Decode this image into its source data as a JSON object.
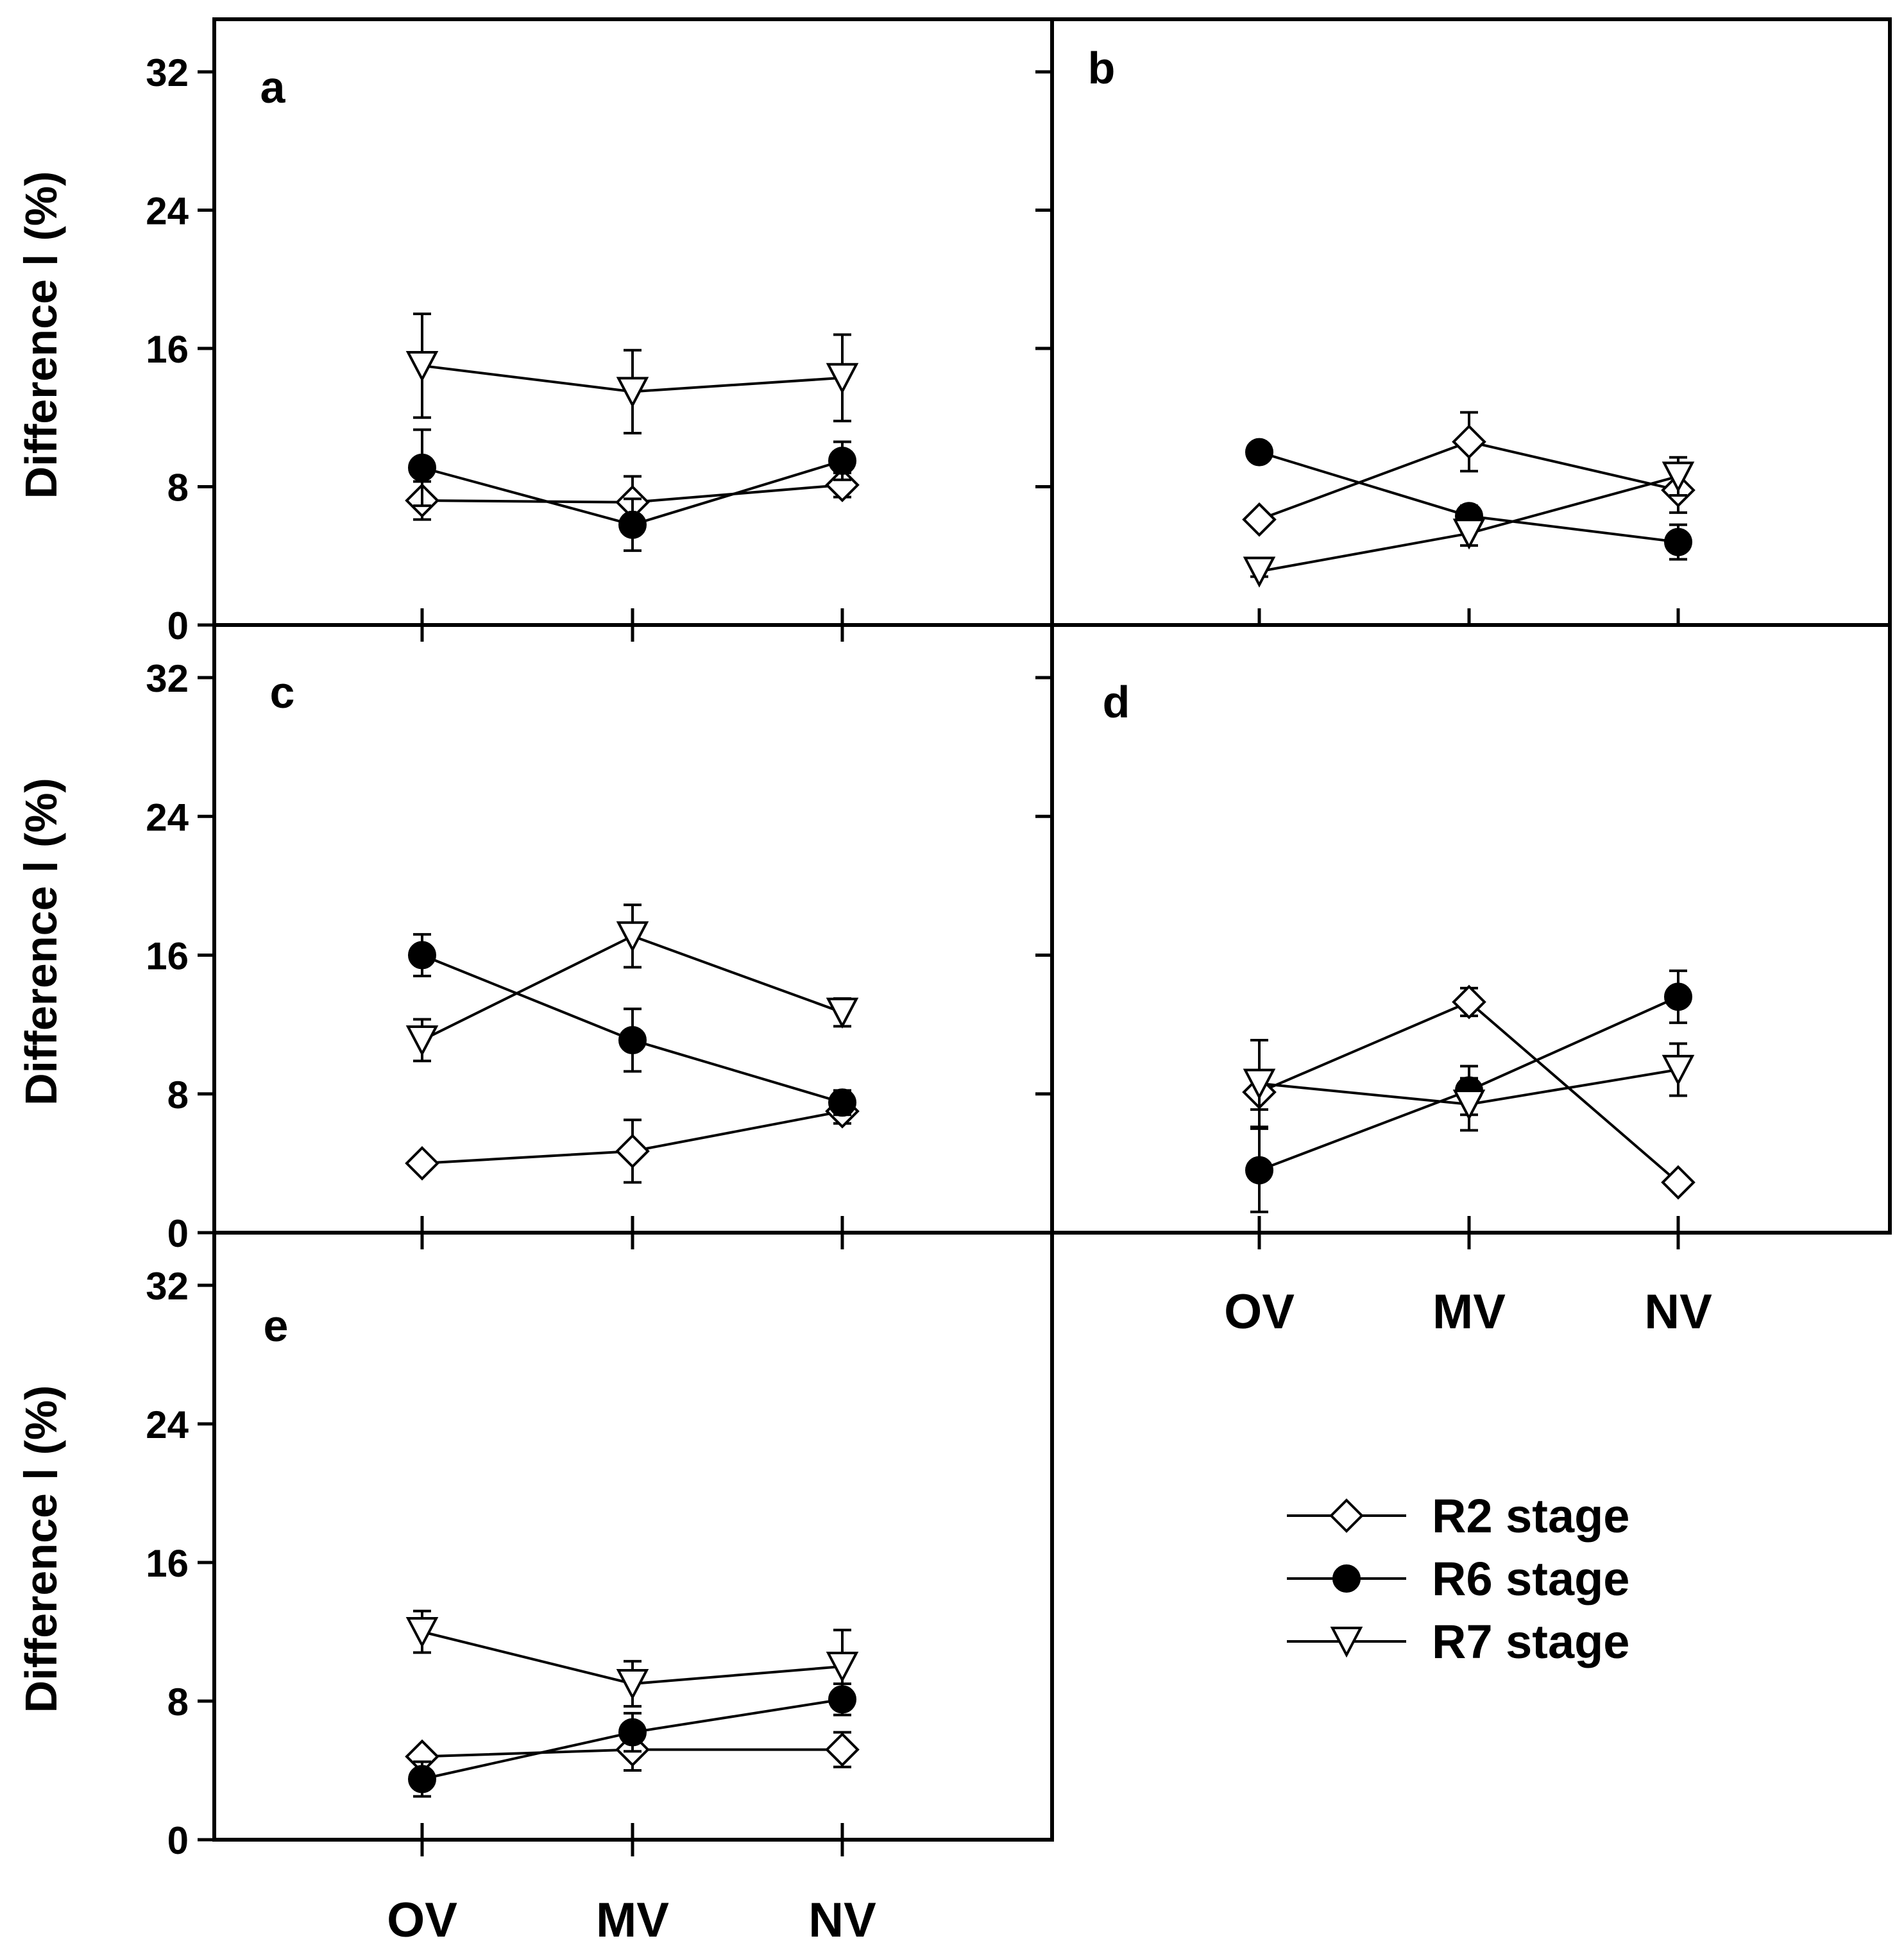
{
  "figure": {
    "categories": [
      "OV",
      "MV",
      "NV"
    ],
    "y_tick_labels": [
      "0",
      "8",
      "16",
      "24",
      "32"
    ],
    "ylabel": "Difference Ⅰ (%)",
    "legend": [
      {
        "name": "R2 stage",
        "marker": "open-diamond"
      },
      {
        "name": "R6 stage",
        "marker": "filled-circle"
      },
      {
        "name": "R7 stage",
        "marker": "open-triangle-down"
      }
    ]
  },
  "chart_data": [
    {
      "type": "line",
      "panel_label": "a",
      "categories": [
        "OV",
        "MV",
        "NV"
      ],
      "ylabel": "Difference Ⅰ (%)",
      "ylim": [
        0,
        32
      ],
      "yticks": [
        0,
        8,
        16,
        24,
        32
      ],
      "series": [
        {
          "name": "R2 stage",
          "values": [
            7.2,
            7.1,
            8.1
          ],
          "errors": [
            1.1,
            1.5,
            0.7
          ]
        },
        {
          "name": "R6 stage",
          "values": [
            9.1,
            5.8,
            9.5
          ],
          "errors": [
            2.2,
            1.5,
            1.1
          ]
        },
        {
          "name": "R7 stage",
          "values": [
            15.0,
            13.5,
            14.3
          ],
          "errors": [
            3.0,
            2.4,
            2.5
          ]
        }
      ]
    },
    {
      "type": "line",
      "panel_label": "b",
      "categories": [
        "OV",
        "MV",
        "NV"
      ],
      "ylim": [
        0,
        32
      ],
      "yticks": [
        0,
        8,
        16,
        24,
        32
      ],
      "series": [
        {
          "name": "R2 stage",
          "values": [
            6.1,
            10.6,
            7.8
          ],
          "errors": [
            0.3,
            1.7,
            1.3
          ]
        },
        {
          "name": "R6 stage",
          "values": [
            10.0,
            6.3,
            4.8
          ],
          "errors": [
            0.3,
            0.6,
            1.0
          ]
        },
        {
          "name": "R7 stage",
          "values": [
            3.1,
            5.3,
            8.6
          ],
          "errors": [
            0.3,
            0.7,
            1.1
          ]
        }
      ]
    },
    {
      "type": "line",
      "panel_label": "c",
      "categories": [
        "OV",
        "MV",
        "NV"
      ],
      "ylabel": "Difference Ⅰ (%)",
      "ylim": [
        0,
        32
      ],
      "yticks": [
        0,
        8,
        16,
        24,
        32
      ],
      "series": [
        {
          "name": "R2 stage",
          "values": [
            4.0,
            4.7,
            7.0
          ],
          "errors": [
            0.3,
            1.8,
            0.7
          ]
        },
        {
          "name": "R6 stage",
          "values": [
            16.0,
            11.1,
            7.5
          ],
          "errors": [
            1.2,
            1.8,
            0.7
          ]
        },
        {
          "name": "R7 stage",
          "values": [
            11.1,
            17.1,
            12.7
          ],
          "errors": [
            1.2,
            1.8,
            0.8
          ]
        }
      ]
    },
    {
      "type": "line",
      "panel_label": "d",
      "categories": [
        "OV",
        "MV",
        "NV"
      ],
      "ylim": [
        0,
        32
      ],
      "yticks": [
        0,
        8,
        16,
        24,
        32
      ],
      "series": [
        {
          "name": "R2 stage",
          "values": [
            8.1,
            13.3,
            2.9
          ],
          "errors": [
            1.0,
            0.8,
            0.3
          ]
        },
        {
          "name": "R6 stage",
          "values": [
            3.6,
            8.2,
            13.6
          ],
          "errors": [
            2.4,
            1.4,
            1.5
          ]
        },
        {
          "name": "R7 stage",
          "values": [
            8.6,
            7.4,
            9.4
          ],
          "errors": [
            2.5,
            1.5,
            1.5
          ]
        }
      ]
    },
    {
      "type": "line",
      "panel_label": "e",
      "categories": [
        "OV",
        "MV",
        "NV"
      ],
      "ylabel": "Difference Ⅰ (%)",
      "ylim": [
        0,
        32
      ],
      "yticks": [
        0,
        8,
        16,
        24,
        32
      ],
      "series": [
        {
          "name": "R2 stage",
          "values": [
            4.8,
            5.2,
            5.2
          ],
          "errors": [
            0.3,
            1.2,
            1.0
          ]
        },
        {
          "name": "R6 stage",
          "values": [
            3.5,
            6.2,
            8.1
          ],
          "errors": [
            1.0,
            1.1,
            0.9
          ]
        },
        {
          "name": "R7 stage",
          "values": [
            12.0,
            9.0,
            10.0
          ],
          "errors": [
            1.2,
            1.3,
            2.1
          ]
        }
      ]
    }
  ]
}
